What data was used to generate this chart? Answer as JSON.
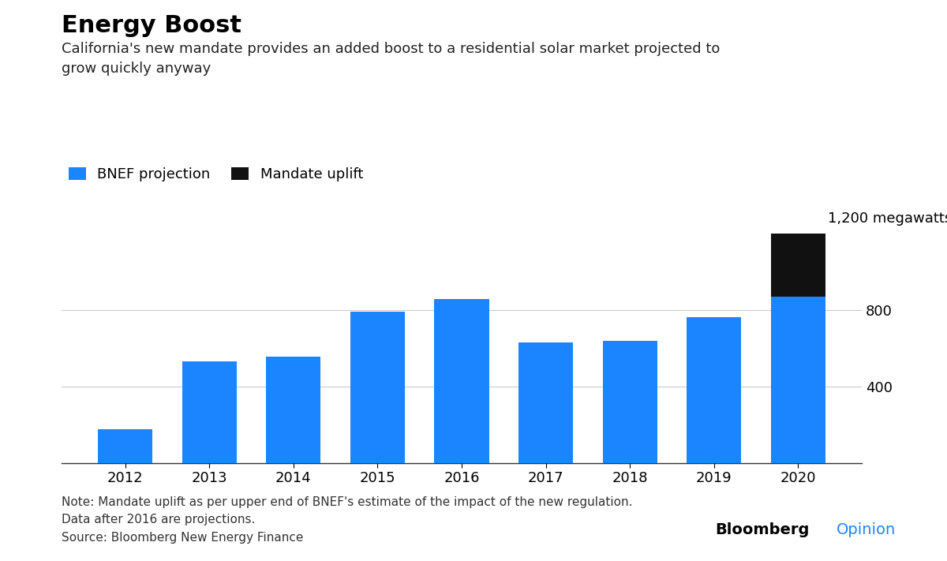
{
  "title": "Energy Boost",
  "subtitle": "California's new mandate provides an added boost to a residential solar market projected to\ngrow quickly anyway",
  "legend": [
    "BNEF projection",
    "Mandate uplift"
  ],
  "legend_colors": [
    "#1a85ff",
    "#111111"
  ],
  "years": [
    2012,
    2013,
    2014,
    2015,
    2016,
    2017,
    2018,
    2019,
    2020
  ],
  "bnef_values": [
    175,
    530,
    555,
    790,
    855,
    630,
    640,
    760,
    870
  ],
  "mandate_uplift": [
    0,
    0,
    0,
    0,
    0,
    0,
    0,
    0,
    330
  ],
  "bar_color": "#1a85ff",
  "uplift_color": "#111111",
  "yticks": [
    400,
    800
  ],
  "ylim": [
    0,
    1350
  ],
  "note_line1": "Note: Mandate uplift as per upper end of BNEF's estimate of the impact of the new regulation.",
  "note_line2": "Data after 2016 are projections.",
  "note_line3": "Source: Bloomberg New Energy Finance",
  "annotation_text": "1,200 megawatts",
  "background_color": "#ffffff",
  "title_fontsize": 22,
  "subtitle_fontsize": 13,
  "tick_fontsize": 13,
  "note_fontsize": 11,
  "brand_fontsize": 14
}
